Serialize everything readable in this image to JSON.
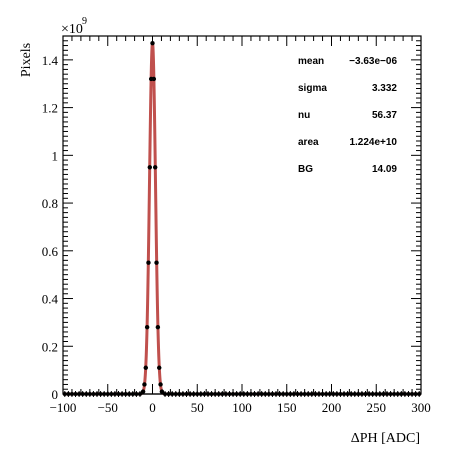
{
  "chart_data": {
    "type": "scatter",
    "xlabel": "ΔPH [ADC]",
    "ylabel": "Pixels",
    "xlim": [
      -100,
      300
    ],
    "ylim": [
      0,
      1.5
    ],
    "y_multiplier_label": "×10",
    "y_multiplier_exponent": "9",
    "x_ticks": [
      -100,
      -50,
      0,
      50,
      100,
      150,
      200,
      250,
      300
    ],
    "x_tick_labels": [
      "−100",
      "−50",
      "0",
      "50",
      "100",
      "150",
      "200",
      "250",
      "300"
    ],
    "y_ticks": [
      0,
      0.2,
      0.4,
      0.6,
      0.8,
      1.0,
      1.2,
      1.4
    ],
    "y_tick_labels": [
      "0",
      "0.2",
      "0.4",
      "0.6",
      "0.8",
      "1",
      "1.2",
      "1.4"
    ],
    "grid": false,
    "stats_box": [
      {
        "name": "mean",
        "value": "−3.63e−06"
      },
      {
        "name": "sigma",
        "value": "3.332"
      },
      {
        "name": "nu",
        "value": "56.37"
      },
      {
        "name": "area",
        "value": "1.224e+10"
      },
      {
        "name": "BG",
        "value": "14.09"
      }
    ],
    "series": [
      {
        "kind": "histogram-points",
        "color": "#000000",
        "x": [
          -98,
          -94,
          -90,
          -86,
          -82,
          -78,
          -74,
          -70,
          -66,
          -62,
          -58,
          -54,
          -50,
          -46,
          -42,
          -38,
          -34,
          -30,
          -26,
          -22,
          -18,
          -14,
          -10,
          -6,
          -2,
          2,
          6,
          10,
          14,
          18,
          22,
          26,
          30,
          34,
          38,
          42,
          46,
          50,
          54,
          58,
          62,
          66,
          70,
          74,
          78,
          82,
          86,
          90,
          94,
          98,
          102,
          106,
          110,
          114,
          118,
          122,
          126,
          130,
          134,
          138,
          142,
          146,
          150,
          154,
          158,
          162,
          166,
          170,
          174,
          178,
          182,
          186,
          190,
          194,
          198,
          202,
          206,
          210,
          214,
          218,
          222,
          226,
          230,
          234,
          238,
          242,
          246,
          250,
          254,
          258,
          262,
          266,
          270,
          274,
          278,
          282,
          286,
          290,
          294,
          298
        ],
        "core_x": [
          -10.5,
          -9,
          -7.5,
          -6,
          -4.5,
          -3,
          -1.5,
          0,
          1.5,
          3,
          4.5,
          6,
          7.5,
          9,
          10.5
        ],
        "core_y": [
          0.01,
          0.04,
          0.11,
          0.28,
          0.55,
          0.95,
          1.32,
          1.47,
          1.32,
          0.95,
          0.55,
          0.28,
          0.11,
          0.04,
          0.01
        ]
      },
      {
        "kind": "fit-curve",
        "color": "#c0504d",
        "mean": 0,
        "sigma": 3.332,
        "peak": 1.47
      }
    ]
  }
}
